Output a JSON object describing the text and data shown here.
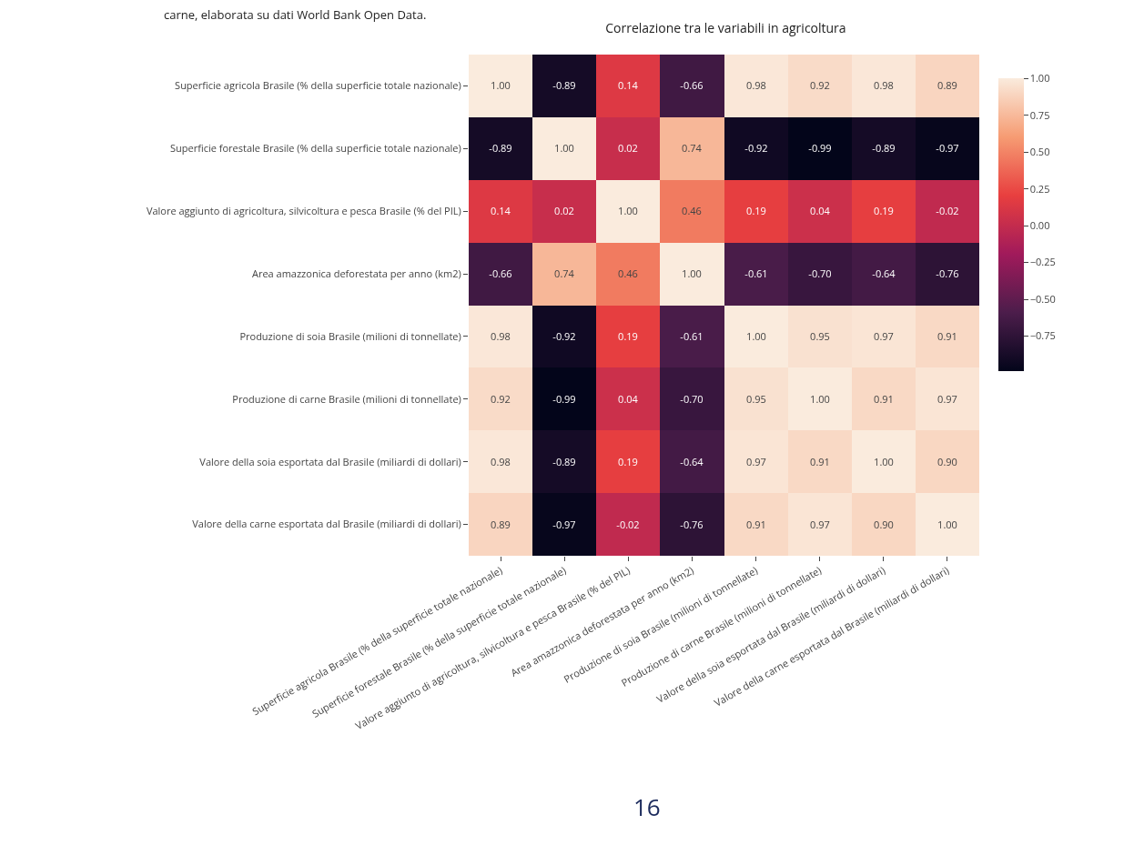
{
  "chart_data": {
    "type": "heatmap",
    "title": "Correlazione tra le variabili in agricoltura",
    "categories": [
      "Superficie agricola Brasile (% della superficie totale nazionale)",
      "Superficie forestale Brasile (% della superficie totale nazionale)",
      "Valore aggiunto di agricoltura, silvicoltura e pesca Brasile (% del PIL)",
      "Area amazzonica deforestata per anno (km2)",
      "Produzione di soia Brasile (milioni di tonnellate)",
      "Produzione di carne Brasile (milioni di tonnellate)",
      "Valore della soia esportata dal Brasile (miliardi di dollari)",
      "Valore della carne esportata dal Brasile (miliardi di dollari)"
    ],
    "y_categories": [
      "Superficie agricola Brasile (% della superficie totale nazionale)",
      "Superficie forestale Brasile (% della superficie totale nazionale)",
      "Valore aggiunto di agricoltura, silvicoltura e pesca Brasile (% del PIL)",
      "Area amazzonica deforestata per anno (km2)",
      "Produzione di soia Brasile (milioni di tonnellate)",
      "Produzione di carne Brasile (milioni di tonnellate)",
      "Valore della soia esportata dal Brasile (miliardi di dollari)",
      "Valore della carne esportata dal Brasile (miliardi di dollari)"
    ],
    "cells": [
      [
        1.0,
        -0.89,
        0.14,
        -0.66,
        0.98,
        0.92,
        0.98,
        0.89
      ],
      [
        -0.89,
        1.0,
        0.02,
        0.74,
        -0.92,
        -0.99,
        -0.89,
        -0.97
      ],
      [
        0.14,
        0.02,
        1.0,
        0.46,
        0.19,
        0.04,
        0.19,
        -0.02
      ],
      [
        -0.66,
        0.74,
        0.46,
        1.0,
        -0.61,
        -0.7,
        -0.64,
        -0.76
      ],
      [
        0.98,
        -0.92,
        0.19,
        -0.61,
        1.0,
        0.95,
        0.97,
        0.91
      ],
      [
        0.92,
        -0.99,
        0.04,
        -0.7,
        0.95,
        1.0,
        0.91,
        0.97
      ],
      [
        0.98,
        -0.89,
        0.19,
        -0.64,
        0.97,
        0.91,
        1.0,
        0.9
      ],
      [
        0.89,
        -0.97,
        -0.02,
        -0.76,
        0.91,
        0.97,
        0.9,
        1.0
      ]
    ],
    "cell_labels": [
      [
        "1.00",
        "-0.89",
        "0.14",
        "-0.66",
        "0.98",
        "0.92",
        "0.98",
        "0.89"
      ],
      [
        "-0.89",
        "1.00",
        "0.02",
        "0.74",
        "-0.92",
        "-0.99",
        "-0.89",
        "-0.97"
      ],
      [
        "0.14",
        "0.02",
        "1.00",
        "0.46",
        "0.19",
        "0.04",
        "0.19",
        "-0.02"
      ],
      [
        "-0.66",
        "0.74",
        "0.46",
        "1.00",
        "-0.61",
        "-0.70",
        "-0.64",
        "-0.76"
      ],
      [
        "0.98",
        "-0.92",
        "0.19",
        "-0.61",
        "1.00",
        "0.95",
        "0.97",
        "0.91"
      ],
      [
        "0.92",
        "-0.99",
        "0.04",
        "-0.70",
        "0.95",
        "1.00",
        "0.91",
        "0.97"
      ],
      [
        "0.98",
        "-0.89",
        "0.19",
        "-0.64",
        "0.97",
        "0.91",
        "1.00",
        "0.90"
      ],
      [
        "0.89",
        "-0.97",
        "-0.02",
        "-0.76",
        "0.91",
        "0.97",
        "0.90",
        "1.00"
      ]
    ],
    "data_labels": true,
    "clim": [
      -0.99,
      1.0
    ],
    "cticks": [
      {
        "value": -0.75,
        "label": "−0.75"
      },
      {
        "value": -0.5,
        "label": "−0.50"
      },
      {
        "value": -0.25,
        "label": "−0.25"
      },
      {
        "value": 0,
        "label": "0.00"
      },
      {
        "value": 0.25,
        "label": "0.25"
      },
      {
        "value": 0.5,
        "label": "0.50"
      },
      {
        "value": 0.75,
        "label": "0.75"
      },
      {
        "value": 1,
        "label": "1.00"
      }
    ],
    "annotations": [
      "carne, elaborata su dati World Bank Open Data.",
      "16"
    ]
  }
}
